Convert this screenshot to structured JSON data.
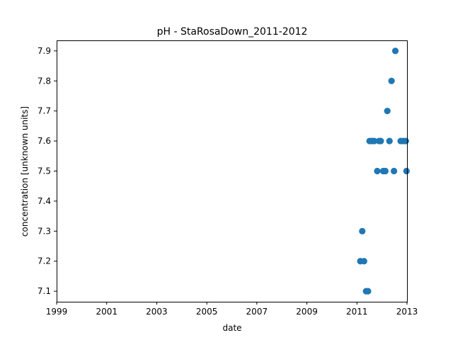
{
  "chart_data": {
    "type": "scatter",
    "title": "pH - StaRosaDown_2011-2012",
    "xlabel": "date",
    "ylabel": "concentration [unknown units]",
    "xlim": [
      "1999-01-01",
      "2013-01-01"
    ],
    "ylim": [
      7.065,
      7.935
    ],
    "x_ticks": [
      "1999",
      "2001",
      "2003",
      "2005",
      "2007",
      "2009",
      "2011",
      "2013"
    ],
    "y_ticks": [
      "7.1",
      "7.2",
      "7.3",
      "7.4",
      "7.5",
      "7.6",
      "7.7",
      "7.8",
      "7.9"
    ],
    "grid": false,
    "marker_color": "#1f77b4",
    "points": [
      {
        "x": "2011-02-20",
        "y": 7.2
      },
      {
        "x": "2011-03-20",
        "y": 7.3
      },
      {
        "x": "2011-04-15",
        "y": 7.2
      },
      {
        "x": "2011-05-15",
        "y": 7.1
      },
      {
        "x": "2011-06-12",
        "y": 7.1
      },
      {
        "x": "2011-07-05",
        "y": 7.6
      },
      {
        "x": "2011-08-10",
        "y": 7.6
      },
      {
        "x": "2011-09-10",
        "y": 7.6
      },
      {
        "x": "2011-10-25",
        "y": 7.5
      },
      {
        "x": "2011-11-20",
        "y": 7.6
      },
      {
        "x": "2011-12-15",
        "y": 7.6
      },
      {
        "x": "2012-01-20",
        "y": 7.5
      },
      {
        "x": "2012-02-20",
        "y": 7.5
      },
      {
        "x": "2012-03-20",
        "y": 7.7
      },
      {
        "x": "2012-04-20",
        "y": 7.6
      },
      {
        "x": "2012-05-20",
        "y": 7.8
      },
      {
        "x": "2012-06-25",
        "y": 7.5
      },
      {
        "x": "2012-07-15",
        "y": 7.9
      },
      {
        "x": "2012-10-01",
        "y": 7.6
      },
      {
        "x": "2012-11-10",
        "y": 7.6
      },
      {
        "x": "2012-12-15",
        "y": 7.6
      },
      {
        "x": "2012-12-25",
        "y": 7.5
      }
    ]
  }
}
